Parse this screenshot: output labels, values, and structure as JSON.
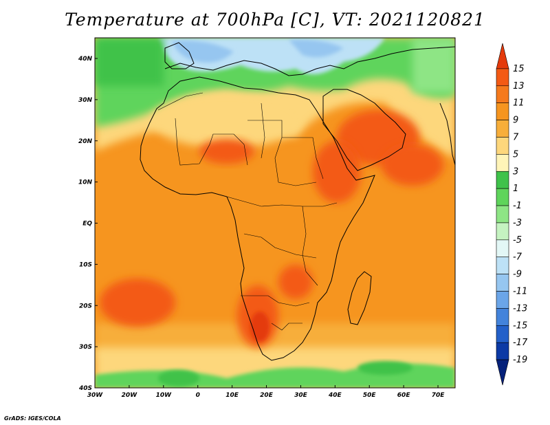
{
  "title": "Temperature at 700hPa [C], VT: 2021120821",
  "credit": "GrADS: IGES/COLA",
  "axes": {
    "x_ticks": [
      "30W",
      "20W",
      "10W",
      "0",
      "10E",
      "20E",
      "30E",
      "40E",
      "50E",
      "60E",
      "70E"
    ],
    "y_ticks": [
      "40N",
      "30N",
      "20N",
      "10N",
      "EQ",
      "10S",
      "20S",
      "30S",
      "40S"
    ]
  },
  "colorbar": {
    "labels": [
      "15",
      "13",
      "11",
      "9",
      "7",
      "5",
      "3",
      "1",
      "-1",
      "-3",
      "-5",
      "-7",
      "-9",
      "-11",
      "-13",
      "-15",
      "-17",
      "-19"
    ],
    "colors": [
      "#e43a0b",
      "#f35a14",
      "#f57a1c",
      "#f6951f",
      "#f7ae3a",
      "#fdd77c",
      "#fff4b8",
      "#3fc24a",
      "#5fd45b",
      "#8ee585",
      "#c5f3c1",
      "#e3f7f6",
      "#bde1f6",
      "#96c6f0",
      "#6ba5e8",
      "#4383db",
      "#2360c9",
      "#0c3aa5",
      "#05217a"
    ]
  },
  "map_colors": {
    "ocean_south": "#f6951f",
    "africa_base": "#f6951f",
    "sahara": "#f7ae3a",
    "north_light": "#fdd77c",
    "warm_red": "#f35a14",
    "hot_red": "#e43a0b",
    "green": "#5fd45b",
    "green_dark": "#3fc24a",
    "green_light": "#8ee585",
    "blue_light": "#bde1f6",
    "blue": "#96c6f0",
    "blue_dark": "#6ba5e8"
  }
}
